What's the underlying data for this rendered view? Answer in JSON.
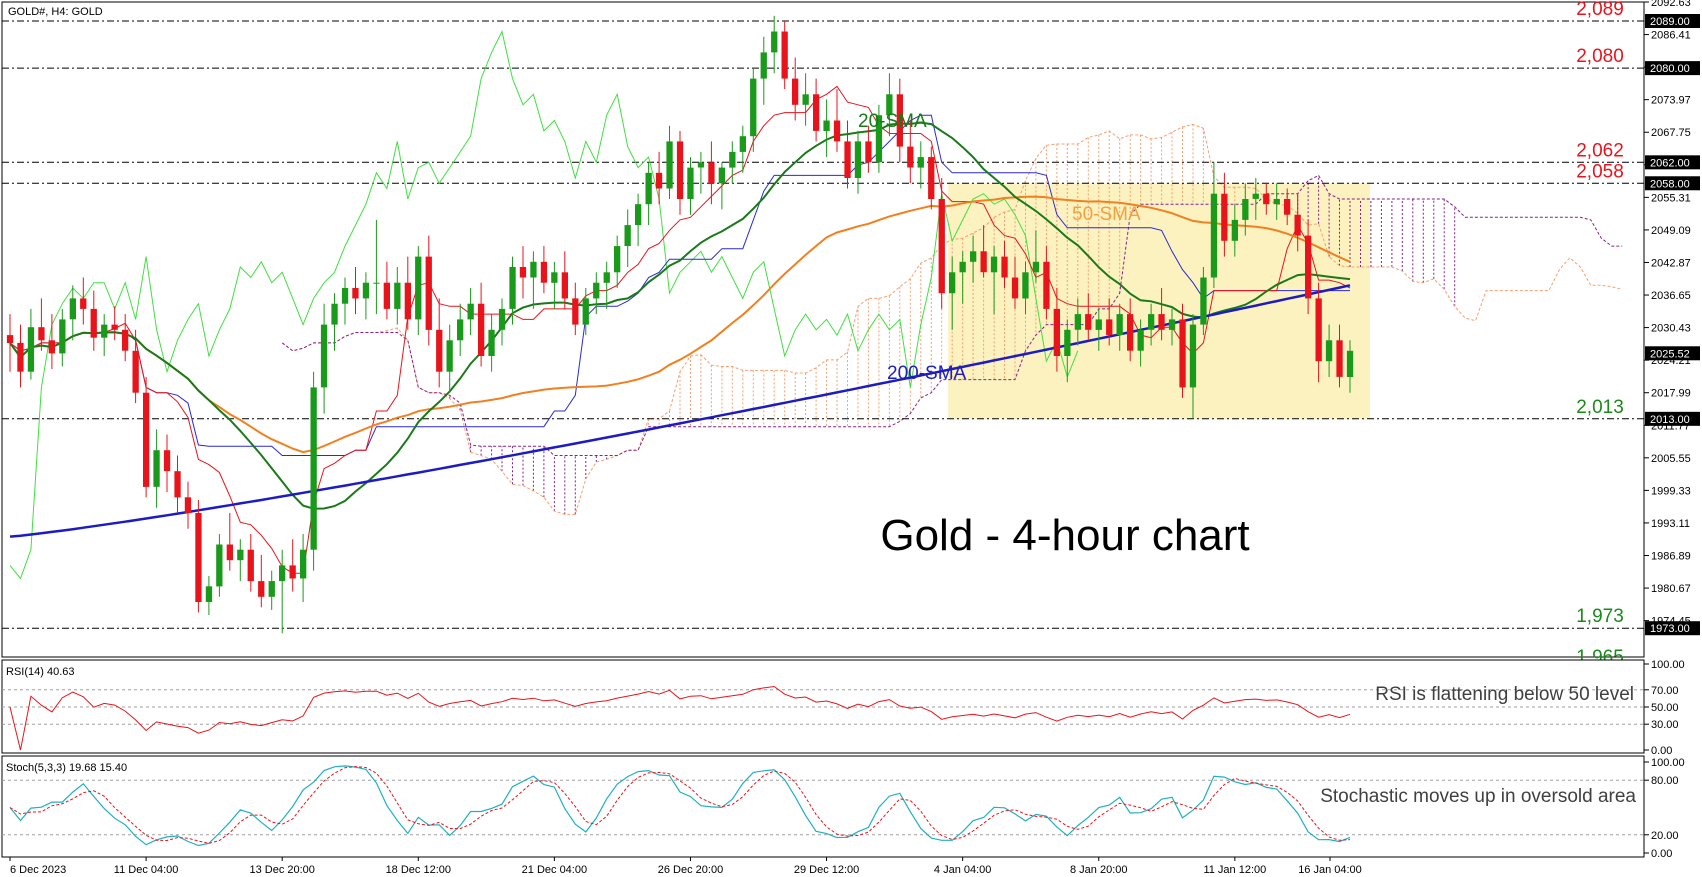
{
  "header": {
    "symbol_label": "GOLD#, H4:  GOLD"
  },
  "chart_data": [
    {
      "panel": "price",
      "type": "candlestick",
      "title": "Gold - 4-hour chart",
      "ylim": [
        1967.5,
        2092.63
      ],
      "y_ticks": [
        "2092.63",
        "2086.41",
        "2080.19",
        "2073.97",
        "2067.75",
        "2061.53",
        "2055.31",
        "2049.09",
        "2042.87",
        "2036.65",
        "2030.43",
        "2024.21",
        "2017.99",
        "2011.77",
        "2005.55",
        "1999.33",
        "1993.11",
        "1986.89",
        "1980.67",
        "1974.45"
      ],
      "x_ticks": [
        "6 Dec 2023",
        "11 Dec 04:00",
        "13 Dec 20:00",
        "18 Dec 12:00",
        "21 Dec 04:00",
        "26 Dec 20:00",
        "29 Dec 12:00",
        "4 Jan 04:00",
        "8 Jan 20:00",
        "11 Jan 12:00",
        "16 Jan 04:00"
      ],
      "levels": [
        {
          "value": 2089,
          "label": "2,089",
          "tag": "2089.00",
          "color": "#e8141c"
        },
        {
          "value": 2080,
          "label": "2,080",
          "tag": "2080.00",
          "color": "#e8141c"
        },
        {
          "value": 2062,
          "label": "2,062",
          "tag": "2062.00",
          "color": "#e8141c"
        },
        {
          "value": 2058,
          "label": "2,058",
          "tag": "2058.00",
          "color": "#e8141c"
        },
        {
          "value": 2013,
          "label": "2,013",
          "tag": "2013.00",
          "color": "#1a8a1a"
        },
        {
          "value": 1973,
          "label": "1,973",
          "tag": "1973.00",
          "color": "#1a8a1a"
        }
      ],
      "partial_label": "1,965",
      "current_price": "2025.52",
      "annotations": [
        {
          "text": "20-SMA",
          "color": "#1a7a1a"
        },
        {
          "text": "50-SMA",
          "color": "#f5a040"
        },
        {
          "text": "200-SMA",
          "color": "#2020c0"
        }
      ],
      "colors": {
        "up": "#1a9a1a",
        "down": "#e8141c",
        "sma20": "#1a7a1a",
        "sma50": "#f08020",
        "sma200": "#1c1cc0",
        "tenkan": "#e8141c",
        "kijun": "#2a2ad0",
        "chikou": "#40e040",
        "range_box": "#fbf2c0"
      },
      "candles": [
        [
          2029.0,
          2033.0,
          2022.0,
          2027.5
        ],
        [
          2027.5,
          2031.0,
          2019.0,
          2022.0
        ],
        [
          2022.0,
          2034.0,
          2020.5,
          2030.5
        ],
        [
          2030.5,
          2036.0,
          2026.0,
          2028.0
        ],
        [
          2028.0,
          2033.0,
          2022.5,
          2025.5
        ],
        [
          2025.5,
          2034.0,
          2023.0,
          2032.0
        ],
        [
          2032.0,
          2038.5,
          2028.0,
          2036.0
        ],
        [
          2036.0,
          2040.0,
          2031.0,
          2034.0
        ],
        [
          2034.0,
          2037.5,
          2026.0,
          2028.5
        ],
        [
          2028.5,
          2033.0,
          2025.0,
          2031.0
        ],
        [
          2031.0,
          2034.5,
          2028.0,
          2030.0
        ],
        [
          2030.0,
          2033.0,
          2024.0,
          2026.0
        ],
        [
          2026.0,
          2030.0,
          2016.0,
          2018.0
        ],
        [
          2018.0,
          2021.0,
          1998.0,
          2000.0
        ],
        [
          2000.0,
          2011.0,
          1996.0,
          2007.0
        ],
        [
          2007.0,
          2010.0,
          1999.0,
          2003.0
        ],
        [
          2003.0,
          2006.0,
          1995.0,
          1998.0
        ],
        [
          1998.0,
          2001.0,
          1992.0,
          1995.0
        ],
        [
          1995.0,
          1997.5,
          1976.0,
          1978.0
        ],
        [
          1978.0,
          1983.0,
          1975.5,
          1981.0
        ],
        [
          1981.0,
          1991.0,
          1979.0,
          1989.0
        ],
        [
          1989.0,
          1995.0,
          1984.0,
          1986.0
        ],
        [
          1986.0,
          1990.0,
          1982.0,
          1988.0
        ],
        [
          1988.0,
          1991.0,
          1980.0,
          1982.0
        ],
        [
          1982.0,
          1987.0,
          1977.0,
          1979.0
        ],
        [
          1979.0,
          1984.0,
          1976.5,
          1982.0
        ],
        [
          1982.0,
          1988.0,
          1972.0,
          1985.0
        ],
        [
          1985.0,
          1990.0,
          1980.0,
          1982.5
        ],
        [
          1982.5,
          1991.0,
          1978.0,
          1988.0
        ],
        [
          1988.0,
          2022.0,
          1984.0,
          2019.0
        ],
        [
          2019.0,
          2035.0,
          2014.0,
          2031.0
        ],
        [
          2031.0,
          2037.0,
          2026.0,
          2035.0
        ],
        [
          2035.0,
          2040.0,
          2031.0,
          2038.0
        ],
        [
          2038.0,
          2042.0,
          2033.0,
          2036.0
        ],
        [
          2036.0,
          2041.0,
          2032.0,
          2039.0
        ],
        [
          2039.0,
          2051.0,
          2033.0,
          2039.0
        ],
        [
          2039.0,
          2043.0,
          2032.0,
          2034.0
        ],
        [
          2034.0,
          2042.0,
          2031.0,
          2039.0
        ],
        [
          2039.0,
          2044.0,
          2030.0,
          2032.0
        ],
        [
          2032.0,
          2046.0,
          2029.0,
          2044.0
        ],
        [
          2044.0,
          2048.0,
          2027.0,
          2030.0
        ],
        [
          2030.0,
          2036.0,
          2019.0,
          2022.0
        ],
        [
          2022.0,
          2031.0,
          2018.0,
          2028.0
        ],
        [
          2028.0,
          2035.0,
          2025.0,
          2032.0
        ],
        [
          2032.0,
          2038.0,
          2029.0,
          2035.0
        ],
        [
          2035.0,
          2039.0,
          2023.0,
          2025.0
        ],
        [
          2025.0,
          2033.0,
          2022.0,
          2030.0
        ],
        [
          2030.0,
          2036.0,
          2027.0,
          2034.0
        ],
        [
          2034.0,
          2044.0,
          2031.0,
          2042.0
        ],
        [
          2042.0,
          2046.0,
          2036.0,
          2040.0
        ],
        [
          2040.0,
          2045.0,
          2034.0,
          2043.0
        ],
        [
          2043.0,
          2046.0,
          2037.0,
          2039.0
        ],
        [
          2039.0,
          2043.0,
          2034.0,
          2041.0
        ],
        [
          2041.0,
          2045.0,
          2034.0,
          2036.0
        ],
        [
          2036.0,
          2039.0,
          2029.0,
          2031.0
        ],
        [
          2031.0,
          2038.0,
          2029.0,
          2036.0
        ],
        [
          2036.0,
          2041.0,
          2033.0,
          2039.0
        ],
        [
          2039.0,
          2043.0,
          2034.0,
          2041.0
        ],
        [
          2041.0,
          2048.0,
          2038.0,
          2046.0
        ],
        [
          2046.0,
          2053.0,
          2042.0,
          2050.0
        ],
        [
          2050.0,
          2056.0,
          2046.0,
          2054.0
        ],
        [
          2054.0,
          2062.0,
          2050.0,
          2060.0
        ],
        [
          2060.0,
          2064.0,
          2054.0,
          2057.0
        ],
        [
          2057.0,
          2069.0,
          2055.0,
          2066.0
        ],
        [
          2066.0,
          2068.0,
          2052.0,
          2055.0
        ],
        [
          2055.0,
          2063.0,
          2052.0,
          2061.0
        ],
        [
          2061.0,
          2064.0,
          2056.0,
          2062.0
        ],
        [
          2062.0,
          2066.0,
          2054.0,
          2058.0
        ],
        [
          2058.0,
          2062.0,
          2053.0,
          2061.0
        ],
        [
          2061.0,
          2066.0,
          2058.0,
          2064.0
        ],
        [
          2064.0,
          2069.0,
          2060.0,
          2067.0
        ],
        [
          2067.0,
          2080.0,
          2064.0,
          2078.0
        ],
        [
          2078.0,
          2086.0,
          2073.0,
          2083.0
        ],
        [
          2083.0,
          2090.0,
          2079.0,
          2087.0
        ],
        [
          2087.0,
          2089.0,
          2076.0,
          2078.0
        ],
        [
          2078.0,
          2082.0,
          2070.0,
          2073.0
        ],
        [
          2073.0,
          2079.0,
          2069.0,
          2075.0
        ],
        [
          2075.0,
          2078.0,
          2066.0,
          2068.0
        ],
        [
          2068.0,
          2074.0,
          2063.0,
          2070.0
        ],
        [
          2070.0,
          2076.0,
          2064.0,
          2066.0
        ],
        [
          2066.0,
          2070.0,
          2057.0,
          2059.0
        ],
        [
          2059.0,
          2068.0,
          2056.0,
          2066.0
        ],
        [
          2066.0,
          2069.0,
          2060.0,
          2062.0
        ],
        [
          2062.0,
          2073.0,
          2060.0,
          2071.0
        ],
        [
          2071.0,
          2079.0,
          2067.0,
          2075.0
        ],
        [
          2075.0,
          2078.0,
          2062.0,
          2065.0
        ],
        [
          2065.0,
          2070.0,
          2058.0,
          2061.0
        ],
        [
          2061.0,
          2066.0,
          2057.0,
          2063.0
        ],
        [
          2063.0,
          2065.0,
          2053.0,
          2055.0
        ],
        [
          2055.0,
          2059.0,
          2034.0,
          2037.0
        ],
        [
          2037.0,
          2044.0,
          2030.0,
          2041.0
        ],
        [
          2041.0,
          2045.0,
          2035.0,
          2043.0
        ],
        [
          2043.0,
          2048.0,
          2039.0,
          2045.0
        ],
        [
          2045.0,
          2050.0,
          2040.0,
          2041.0
        ],
        [
          2041.0,
          2046.0,
          2033.0,
          2044.0
        ],
        [
          2044.0,
          2047.0,
          2038.0,
          2040.0
        ],
        [
          2040.0,
          2044.0,
          2034.0,
          2036.0
        ],
        [
          2036.0,
          2043.0,
          2033.0,
          2041.0
        ],
        [
          2041.0,
          2049.0,
          2039.0,
          2043.0
        ],
        [
          2043.0,
          2046.0,
          2032.0,
          2034.0
        ],
        [
          2034.0,
          2038.0,
          2022.0,
          2025.0
        ],
        [
          2025.0,
          2032.0,
          2020.0,
          2030.0
        ],
        [
          2030.0,
          2036.0,
          2027.0,
          2033.0
        ],
        [
          2033.0,
          2037.0,
          2028.0,
          2030.0
        ],
        [
          2030.0,
          2034.0,
          2026.0,
          2032.0
        ],
        [
          2032.0,
          2036.0,
          2027.0,
          2029.0
        ],
        [
          2029.0,
          2035.0,
          2026.0,
          2033.0
        ],
        [
          2033.0,
          2036.0,
          2024.0,
          2026.0
        ],
        [
          2026.0,
          2032.0,
          2023.0,
          2030.0
        ],
        [
          2030.0,
          2035.0,
          2027.0,
          2033.0
        ],
        [
          2033.0,
          2038.0,
          2028.0,
          2030.0
        ],
        [
          2030.0,
          2034.0,
          2027.0,
          2032.0
        ],
        [
          2032.0,
          2035.0,
          2017.0,
          2019.0
        ],
        [
          2019.0,
          2033.0,
          2013.0,
          2031.0
        ],
        [
          2031.0,
          2042.0,
          2029.0,
          2040.0
        ],
        [
          2040.0,
          2062.0,
          2038.0,
          2056.0
        ],
        [
          2056.0,
          2060.0,
          2044.0,
          2047.0
        ],
        [
          2047.0,
          2054.0,
          2044.0,
          2051.0
        ],
        [
          2051.0,
          2058.0,
          2048.0,
          2055.0
        ],
        [
          2055.0,
          2059.0,
          2051.0,
          2056.0
        ],
        [
          2056.0,
          2058.0,
          2052.0,
          2054.0
        ],
        [
          2054.0,
          2058.0,
          2051.0,
          2055.0
        ],
        [
          2055.0,
          2057.0,
          2050.0,
          2052.0
        ],
        [
          2052.0,
          2056.0,
          2045.0,
          2048.0
        ],
        [
          2048.0,
          2051.0,
          2033.0,
          2036.0
        ],
        [
          2036.0,
          2039.0,
          2020.0,
          2024.0
        ],
        [
          2024.0,
          2031.0,
          2021.0,
          2028.0
        ],
        [
          2028.0,
          2031.0,
          2019.0,
          2021.0
        ],
        [
          2021.0,
          2028.0,
          2018.0,
          2026.0
        ]
      ]
    },
    {
      "panel": "rsi",
      "type": "line",
      "label": "RSI(14) 40.63",
      "ylim": [
        0,
        100
      ],
      "y_ticks": [
        "100.00",
        "70.00",
        "50.00",
        "30.00",
        "0.00"
      ],
      "levels": [
        70,
        50,
        30
      ],
      "annotation": "RSI is flattening below 50 level",
      "color": "#e8141c"
    },
    {
      "panel": "stochastic",
      "type": "line",
      "label": "Stoch(5,3,3) 19.68 15.40",
      "ylim": [
        0,
        100
      ],
      "y_ticks": [
        "100.00",
        "80.00",
        "20.00",
        "0.00"
      ],
      "levels": [
        80,
        20
      ],
      "annotation": "Stochastic moves up in oversold area",
      "series": [
        {
          "name": "main",
          "color": "#20b0c0"
        },
        {
          "name": "signal",
          "color": "#e8141c"
        }
      ]
    }
  ]
}
